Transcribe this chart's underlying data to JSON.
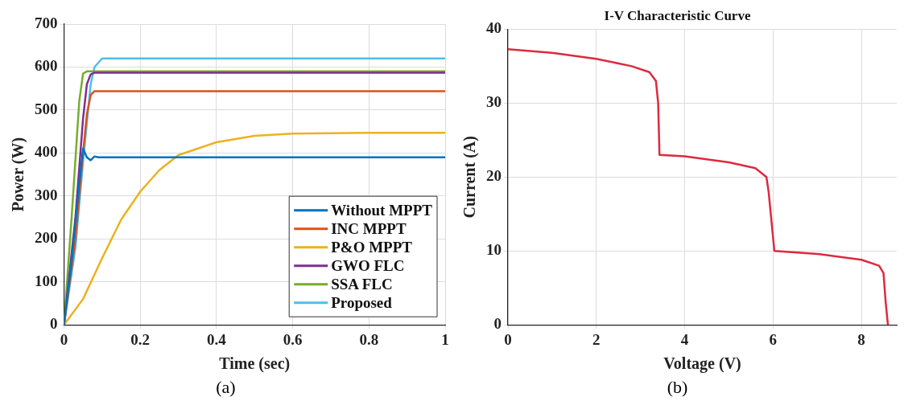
{
  "chart_data": [
    {
      "type": "line",
      "xlabel": "Time (sec)",
      "ylabel": "Power (W)",
      "xlim": [
        0,
        1
      ],
      "xticks": [
        0,
        0.2,
        0.4,
        0.6,
        0.8,
        1
      ],
      "ylim": [
        0,
        700
      ],
      "yticks": [
        0,
        100,
        200,
        300,
        400,
        500,
        600,
        700
      ],
      "grid": true,
      "legend": "bottom right",
      "annotations": [
        "(a)"
      ],
      "series": [
        {
          "name": "Without MPPT",
          "color": "#0072bd",
          "x": [
            0,
            0.02,
            0.04,
            0.05,
            0.06,
            0.07,
            0.08,
            0.09,
            1
          ],
          "values": [
            0,
            150,
            330,
            410,
            390,
            383,
            392,
            390,
            390
          ]
        },
        {
          "name": "INC MPPT",
          "color": "#d95319",
          "x": [
            0,
            0.03,
            0.05,
            0.06,
            0.07,
            0.08,
            1
          ],
          "values": [
            0,
            200,
            400,
            490,
            535,
            544,
            544
          ]
        },
        {
          "name": "P&O MPPT",
          "color": "#edb120",
          "x": [
            0,
            0.05,
            0.1,
            0.15,
            0.2,
            0.25,
            0.3,
            0.4,
            0.5,
            0.6,
            0.8,
            1
          ],
          "values": [
            0,
            60,
            155,
            245,
            310,
            360,
            395,
            425,
            440,
            445,
            447,
            447
          ]
        },
        {
          "name": "GWO FLC",
          "color": "#7e2f8e",
          "x": [
            0,
            0.03,
            0.05,
            0.06,
            0.07,
            0.08,
            1
          ],
          "values": [
            0,
            250,
            480,
            560,
            583,
            587,
            587
          ]
        },
        {
          "name": "SSA FLC",
          "color": "#77ac30",
          "x": [
            0,
            0.02,
            0.04,
            0.05,
            0.06,
            1
          ],
          "values": [
            0,
            250,
            520,
            585,
            590,
            590
          ]
        },
        {
          "name": "Proposed",
          "color": "#4dbeee",
          "x": [
            0,
            0.03,
            0.05,
            0.07,
            0.08,
            0.1,
            1
          ],
          "values": [
            0,
            180,
            380,
            560,
            600,
            620,
            620
          ]
        }
      ]
    },
    {
      "type": "line",
      "title": "I-V Characteristic Curve",
      "xlabel": "Voltage (V)",
      "ylabel": "Current (A)",
      "xlim": [
        0,
        8.8
      ],
      "xticks": [
        0,
        2,
        4,
        6,
        8
      ],
      "ylim": [
        0,
        40
      ],
      "yticks": [
        0,
        10,
        20,
        30,
        40
      ],
      "grid": true,
      "annotations": [
        "(b)"
      ],
      "series": [
        {
          "color": "#dc2a40",
          "x": [
            0,
            1,
            2,
            2.8,
            3.2,
            3.35,
            3.4,
            3.43,
            4,
            5,
            5.6,
            5.85,
            5.9,
            6.03,
            7,
            8,
            8.4,
            8.5,
            8.55,
            8.6
          ],
          "values": [
            37.3,
            36.8,
            36,
            35,
            34.2,
            33,
            30,
            23,
            22.8,
            22,
            21.2,
            20,
            18,
            10,
            9.6,
            8.8,
            8,
            7,
            3,
            0
          ]
        }
      ]
    }
  ]
}
